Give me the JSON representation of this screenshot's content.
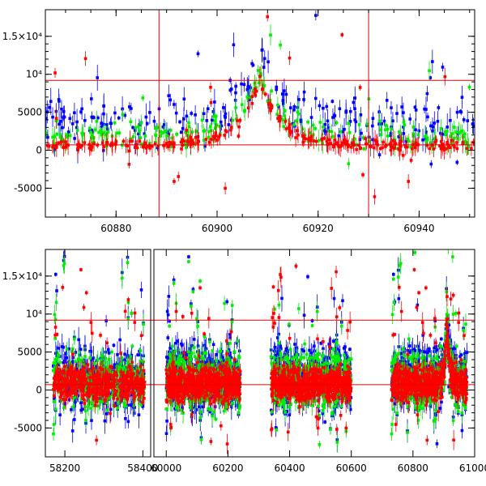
{
  "chart_data": [
    {
      "type": "scatter",
      "xlim": [
        60866,
        60951
      ],
      "ylim": [
        -8800,
        18500
      ],
      "x_ticks": [
        60880,
        60900,
        60920,
        60940
      ],
      "x_tick_labels": [
        "60880",
        "60900",
        "60920",
        "60940"
      ],
      "y_ticks": [
        -5000,
        0,
        5000,
        10000,
        15000
      ],
      "y_tick_labels": [
        "-5000",
        "0",
        "5000",
        "10⁴",
        "1.5×10⁴"
      ],
      "hlines": [
        9200,
        700
      ],
      "vlines": [
        60888.5,
        60930
      ],
      "grid": false,
      "error_bars": true,
      "series": [
        {
          "color": "#0000ff",
          "baseline": 3800,
          "spread": 2200
        },
        {
          "color": "#00ee00",
          "baseline": 1800,
          "spread": 1300
        },
        {
          "color": "#ff0000",
          "baseline": 700,
          "spread": 500
        }
      ],
      "flare": {
        "peak_x": 60908.5,
        "peak_y": 9800,
        "width": 4
      }
    },
    {
      "type": "scatter",
      "xlim": [
        58150,
        61000
      ],
      "ylim": [
        -8800,
        18500
      ],
      "x_ticks": [
        58200,
        58400,
        60000,
        60200,
        60400,
        60600,
        60800,
        61000
      ],
      "x_tick_labels": [
        "58200",
        "58400",
        "60000",
        "60200",
        "60400",
        "60600",
        "60800",
        "61000"
      ],
      "y_ticks": [
        -5000,
        0,
        5000,
        10000,
        15000
      ],
      "y_tick_labels": [
        "-5000",
        "0",
        "5000",
        "10⁴",
        "1.5×10⁴"
      ],
      "hlines": [
        9200,
        700
      ],
      "axis_break": true,
      "grid": false,
      "error_bars": true,
      "series": [
        {
          "color": "#0000ff",
          "baseline": 1600,
          "spread": 3000
        },
        {
          "color": "#00ee00",
          "baseline": 1200,
          "spread": 2600
        },
        {
          "color": "#ff0000",
          "baseline": 800,
          "spread": 1500
        }
      ]
    }
  ]
}
